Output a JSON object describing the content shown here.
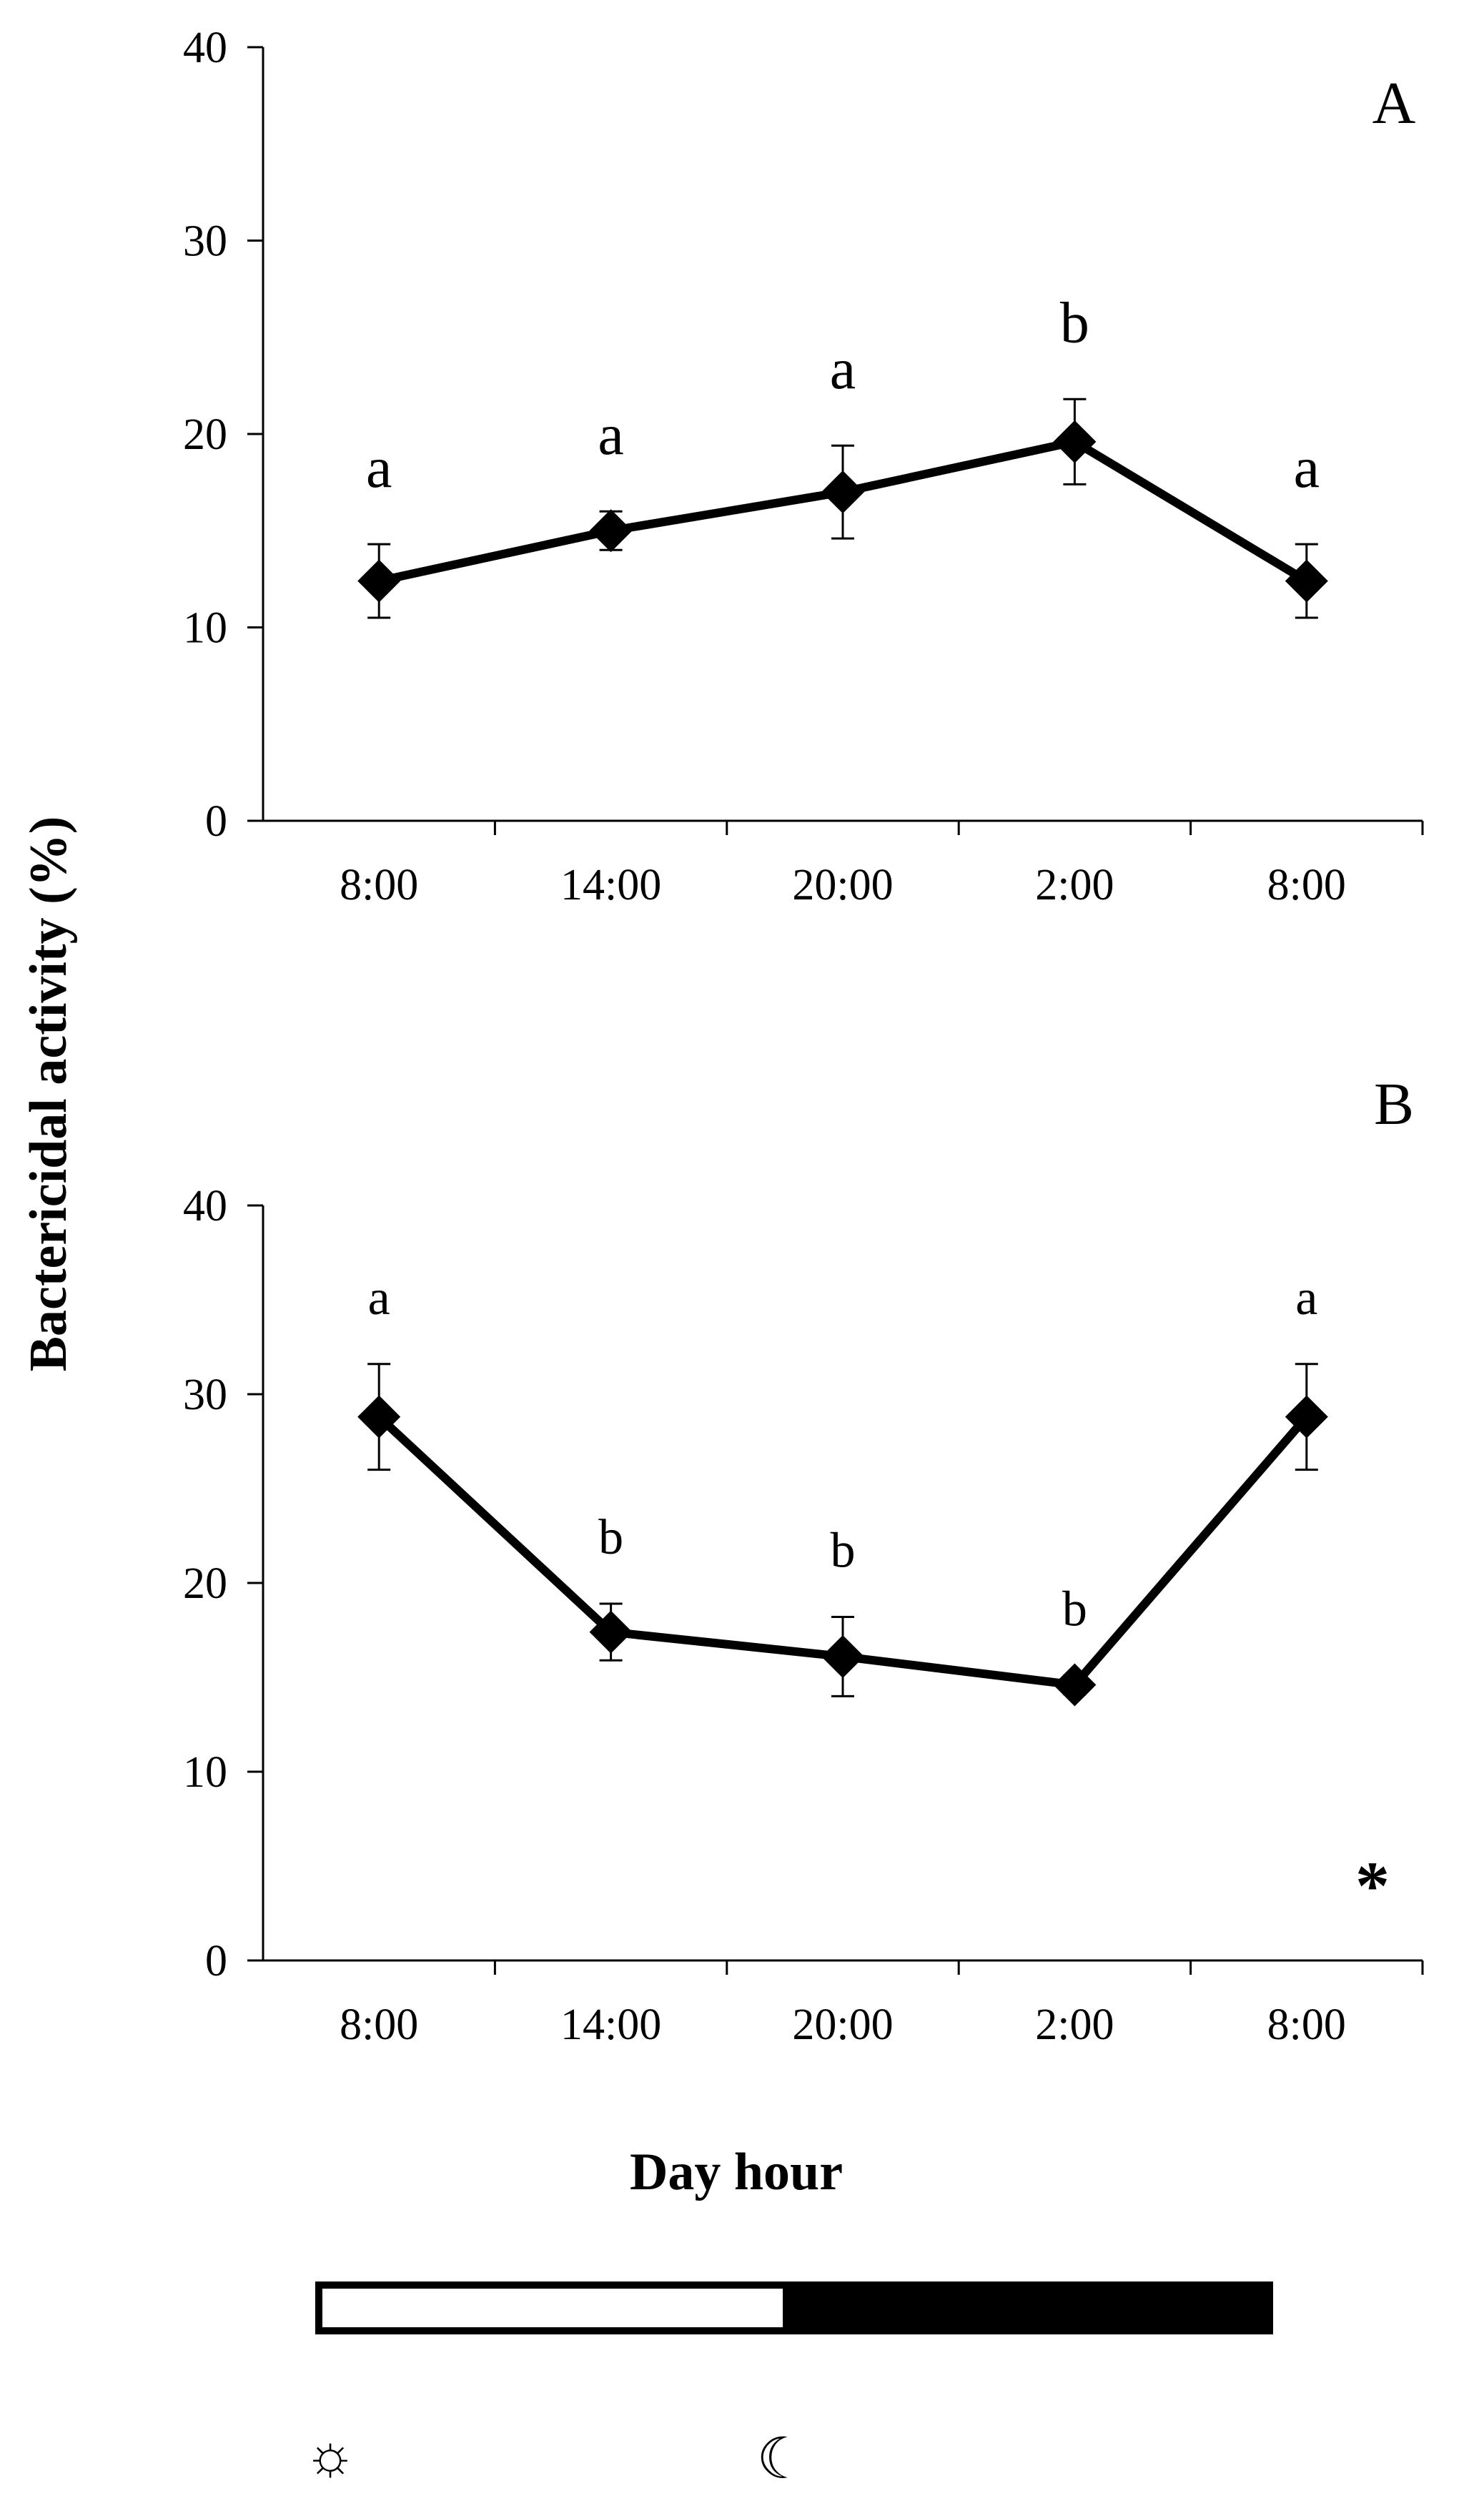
{
  "chart_data": [
    {
      "type": "line",
      "panel": "A",
      "categories": [
        "8:00",
        "14:00",
        "20:00",
        "2:00",
        "8:00"
      ],
      "series": [
        {
          "name": "Bactericidal activity",
          "values": [
            12.4,
            15.0,
            17.0,
            19.6,
            12.4
          ],
          "error": [
            1.9,
            1.0,
            2.4,
            2.2,
            1.9
          ]
        }
      ],
      "significance_letters": [
        "a",
        "a",
        "a",
        "b",
        "a"
      ],
      "ylim": [
        0,
        40
      ],
      "yticks": [
        0,
        10,
        20,
        30,
        40
      ],
      "ytick_labels": [
        "0",
        "10",
        "20",
        "30",
        "40"
      ],
      "annotation": ""
    },
    {
      "type": "line",
      "panel": "B",
      "categories": [
        "8:00",
        "14:00",
        "20:00",
        "2:00",
        "8:00"
      ],
      "series": [
        {
          "name": "Bactericidal activity",
          "values": [
            28.8,
            17.4,
            16.1,
            14.6,
            28.8
          ],
          "error": [
            2.8,
            1.5,
            2.1,
            0.5,
            2.8
          ]
        }
      ],
      "significance_letters": [
        "a",
        "b",
        "b",
        "b",
        "a"
      ],
      "ylim": [
        0,
        40
      ],
      "yticks": [
        0,
        10,
        20,
        30,
        40
      ],
      "ytick_labels": [
        "0",
        "10",
        "20",
        "30",
        "40"
      ],
      "annotation": "*"
    }
  ],
  "shared": {
    "ylabel": "Bactericidal activity (%)",
    "xlabel": "Day hour",
    "light_dark_bar": {
      "light_fraction": 0.49,
      "light_color": "#ffffff",
      "dark_color": "#000000"
    },
    "icons": [
      "sun-icon",
      "moon-icon"
    ],
    "sun_glyph": "☼",
    "moon_glyph": "☾"
  }
}
